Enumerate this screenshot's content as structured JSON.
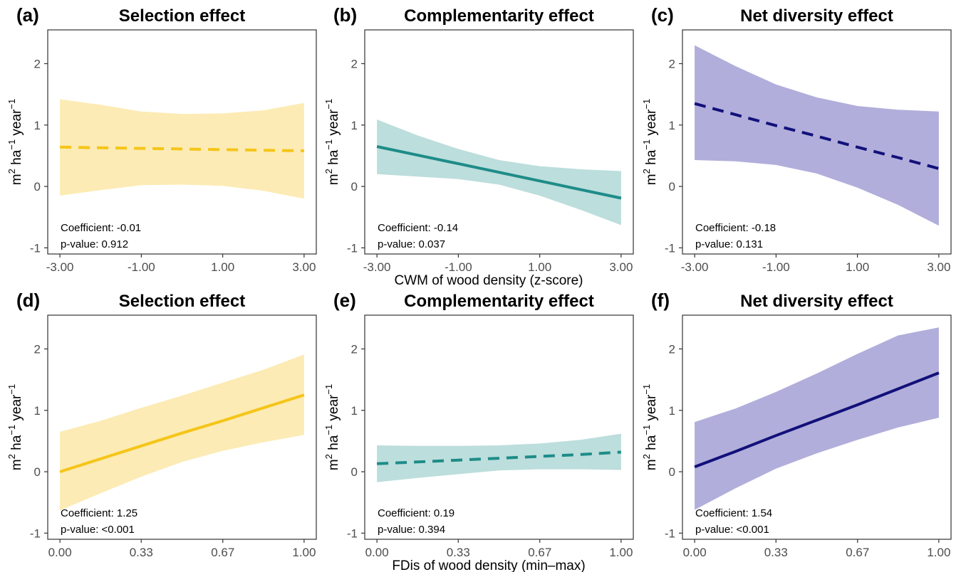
{
  "y_axis_label": {
    "base": "m",
    "sup1": "2",
    "mid1": " ha",
    "sup2": "−1",
    "mid2": " year",
    "sup3": "−1"
  },
  "x_axis_titles": {
    "row1": "CWM of wood density (z-score)",
    "row2": "FDis of wood density (min–max)"
  },
  "colors": {
    "selection_line": "#F5C518",
    "selection_band": "#FCEBB4",
    "complementarity_line": "#1E8C88",
    "complementarity_band": "#BCDEDC",
    "net_line": "#12107A",
    "net_band": "#B1AEDB"
  },
  "chart_data": [
    {
      "id": "a",
      "tag": "(a)",
      "title": "Selection effect",
      "type": "line",
      "row": 0,
      "col": 0,
      "linestyle": "dashed",
      "line_color": "#F5C518",
      "band_color": "#FCEBB4",
      "xlim": [
        -3.3,
        3.3
      ],
      "ylim": [
        -1.1,
        2.55
      ],
      "x_ticks": [
        -3,
        -1,
        1,
        3
      ],
      "x_tick_labels": [
        "-3.00",
        "-1.00",
        "1.00",
        "3.00"
      ],
      "y_ticks": [
        -1,
        0,
        1,
        2
      ],
      "y_tick_labels": [
        "-1",
        "0",
        "1",
        "2"
      ],
      "x": [
        -3,
        -2,
        -1,
        0,
        1,
        2,
        3
      ],
      "fit": [
        0.64,
        0.63,
        0.62,
        0.61,
        0.6,
        0.59,
        0.58
      ],
      "lower": [
        -0.15,
        -0.06,
        0.02,
        0.03,
        0.01,
        -0.07,
        -0.2
      ],
      "upper": [
        1.42,
        1.33,
        1.22,
        1.18,
        1.19,
        1.24,
        1.36
      ],
      "coefficient": "Coefficient: -0.01",
      "pvalue": "p-value: 0.912"
    },
    {
      "id": "b",
      "tag": "(b)",
      "title": "Complementarity effect",
      "type": "line",
      "row": 0,
      "col": 1,
      "linestyle": "solid",
      "line_color": "#1E8C88",
      "band_color": "#BCDEDC",
      "xlim": [
        -3.3,
        3.3
      ],
      "ylim": [
        -1.1,
        2.55
      ],
      "x_ticks": [
        -3,
        -1,
        1,
        3
      ],
      "x_tick_labels": [
        "-3.00",
        "-1.00",
        "1.00",
        "3.00"
      ],
      "y_ticks": [
        -1,
        0,
        1,
        2
      ],
      "y_tick_labels": [
        "-1",
        "0",
        "1",
        "2"
      ],
      "x": [
        -3,
        -2,
        -1,
        0,
        1,
        2,
        3
      ],
      "fit": [
        0.65,
        0.51,
        0.37,
        0.23,
        0.09,
        -0.05,
        -0.19
      ],
      "lower": [
        0.2,
        0.16,
        0.12,
        0.03,
        -0.15,
        -0.38,
        -0.63
      ],
      "upper": [
        1.09,
        0.83,
        0.61,
        0.43,
        0.33,
        0.28,
        0.25
      ],
      "coefficient": "Coefficient: -0.14",
      "pvalue": "p-value: 0.037"
    },
    {
      "id": "c",
      "tag": "(c)",
      "title": "Net diversity effect",
      "type": "line",
      "row": 0,
      "col": 2,
      "linestyle": "dashed",
      "line_color": "#12107A",
      "band_color": "#B1AEDB",
      "xlim": [
        -3.3,
        3.3
      ],
      "ylim": [
        -1.1,
        2.55
      ],
      "x_ticks": [
        -3,
        -1,
        1,
        3
      ],
      "x_tick_labels": [
        "-3.00",
        "-1.00",
        "1.00",
        "3.00"
      ],
      "y_ticks": [
        -1,
        0,
        1,
        2
      ],
      "y_tick_labels": [
        "-1",
        "0",
        "1",
        "2"
      ],
      "x": [
        -3,
        -2,
        -1,
        0,
        1,
        2,
        3
      ],
      "fit": [
        1.35,
        1.17,
        0.99,
        0.82,
        0.64,
        0.47,
        0.29
      ],
      "lower": [
        0.43,
        0.41,
        0.35,
        0.21,
        -0.02,
        -0.3,
        -0.64
      ],
      "upper": [
        2.3,
        1.96,
        1.66,
        1.45,
        1.31,
        1.25,
        1.22
      ],
      "coefficient": "Coefficient: -0.18",
      "pvalue": "p-value: 0.131"
    },
    {
      "id": "d",
      "tag": "(d)",
      "title": "Selection effect",
      "type": "line",
      "row": 1,
      "col": 0,
      "linestyle": "solid",
      "line_color": "#F5C518",
      "band_color": "#FCEBB4",
      "xlim": [
        -0.05,
        1.05
      ],
      "ylim": [
        -1.1,
        2.55
      ],
      "x_ticks": [
        0,
        0.333,
        0.667,
        1
      ],
      "x_tick_labels": [
        "0.00",
        "0.33",
        "0.67",
        "1.00"
      ],
      "y_ticks": [
        -1,
        0,
        1,
        2
      ],
      "y_tick_labels": [
        "-1",
        "0",
        "1",
        "2"
      ],
      "x": [
        0,
        0.167,
        0.333,
        0.5,
        0.667,
        0.833,
        1
      ],
      "fit": [
        0.0,
        0.21,
        0.42,
        0.63,
        0.83,
        1.04,
        1.25
      ],
      "lower": [
        -0.63,
        -0.35,
        -0.08,
        0.16,
        0.34,
        0.48,
        0.6
      ],
      "upper": [
        0.65,
        0.83,
        1.04,
        1.24,
        1.45,
        1.66,
        1.91
      ],
      "coefficient": "Coefficient: 1.25",
      "pvalue": "p-value: <0.001"
    },
    {
      "id": "e",
      "tag": "(e)",
      "title": "Complementarity effect",
      "type": "line",
      "row": 1,
      "col": 1,
      "linestyle": "dashed",
      "line_color": "#1E8C88",
      "band_color": "#BCDEDC",
      "xlim": [
        -0.05,
        1.05
      ],
      "ylim": [
        -1.1,
        2.55
      ],
      "x_ticks": [
        0,
        0.333,
        0.667,
        1
      ],
      "x_tick_labels": [
        "0.00",
        "0.33",
        "0.67",
        "1.00"
      ],
      "y_ticks": [
        -1,
        0,
        1,
        2
      ],
      "y_tick_labels": [
        "-1",
        "0",
        "1",
        "2"
      ],
      "x": [
        0,
        0.167,
        0.333,
        0.5,
        0.667,
        0.833,
        1
      ],
      "fit": [
        0.13,
        0.16,
        0.19,
        0.22,
        0.25,
        0.28,
        0.32
      ],
      "lower": [
        -0.17,
        -0.1,
        -0.04,
        0.02,
        0.04,
        0.04,
        0.03
      ],
      "upper": [
        0.43,
        0.42,
        0.42,
        0.43,
        0.46,
        0.52,
        0.62
      ],
      "coefficient": "Coefficient: 0.19",
      "pvalue": "p-value: 0.394"
    },
    {
      "id": "f",
      "tag": "(f)",
      "title": "Net diversity effect",
      "type": "line",
      "row": 1,
      "col": 2,
      "linestyle": "solid",
      "line_color": "#12107A",
      "band_color": "#B1AEDB",
      "xlim": [
        -0.05,
        1.05
      ],
      "ylim": [
        -1.1,
        2.55
      ],
      "x_ticks": [
        0,
        0.333,
        0.667,
        1
      ],
      "x_tick_labels": [
        "0.00",
        "0.33",
        "0.67",
        "1.00"
      ],
      "y_ticks": [
        -1,
        0,
        1,
        2
      ],
      "y_tick_labels": [
        "-1",
        "0",
        "1",
        "2"
      ],
      "x": [
        0,
        0.167,
        0.333,
        0.5,
        0.667,
        0.833,
        1
      ],
      "fit": [
        0.08,
        0.33,
        0.59,
        0.84,
        1.09,
        1.35,
        1.61
      ],
      "lower": [
        -0.62,
        -0.27,
        0.05,
        0.3,
        0.52,
        0.72,
        0.88
      ],
      "upper": [
        0.81,
        1.03,
        1.3,
        1.6,
        1.92,
        2.22,
        2.35
      ],
      "coefficient": "Coefficient: 1.54",
      "pvalue": "p-value: <0.001"
    }
  ]
}
